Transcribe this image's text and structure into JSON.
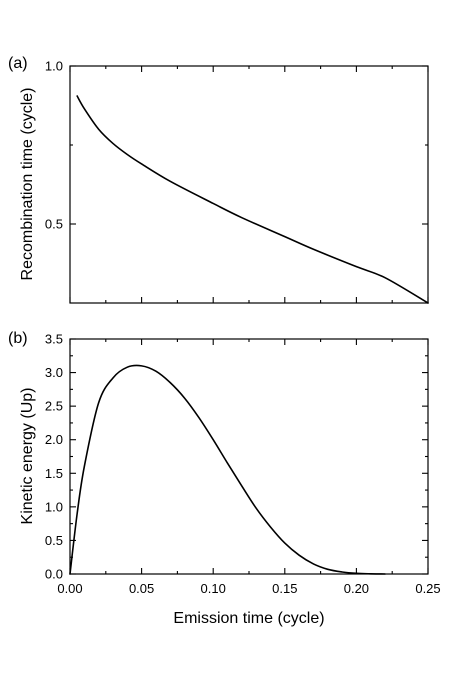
{
  "chart_data": [
    {
      "type": "line",
      "panel_label": "(a)",
      "xlabel": "",
      "ylabel": "Recombination time (cycle)",
      "xlim": [
        0,
        0.25
      ],
      "ylim": [
        0.25,
        1.0
      ],
      "x_ticks": [
        0.0,
        0.05,
        0.1,
        0.15,
        0.2,
        0.25
      ],
      "x_tick_labels": [],
      "y_ticks": [
        0.5,
        1.0
      ],
      "y_tick_labels": [
        "0.5",
        "1.0"
      ],
      "grid": false,
      "series": [
        {
          "x": [
            0.005,
            0.01,
            0.02,
            0.03,
            0.04,
            0.05,
            0.07,
            0.1,
            0.12,
            0.15,
            0.17,
            0.2,
            0.22,
            0.25
          ],
          "y": [
            0.905,
            0.865,
            0.8,
            0.755,
            0.72,
            0.69,
            0.635,
            0.565,
            0.52,
            0.46,
            0.42,
            0.365,
            0.33,
            0.25
          ]
        }
      ]
    },
    {
      "type": "line",
      "panel_label": "(b)",
      "xlabel": "Emission time (cycle)",
      "ylabel": "Kinetic energy (Up)",
      "xlim": [
        0,
        0.25
      ],
      "ylim": [
        0,
        3.5
      ],
      "x_ticks": [
        0.0,
        0.05,
        0.1,
        0.15,
        0.2,
        0.25
      ],
      "x_tick_labels": [
        "0.00",
        "0.05",
        "0.10",
        "0.15",
        "0.20",
        "0.25"
      ],
      "y_ticks": [
        0.0,
        0.5,
        1.0,
        1.5,
        2.0,
        2.5,
        3.0,
        3.5
      ],
      "y_tick_labels": [
        "0.0",
        "0.5",
        "1.0",
        "1.5",
        "2.0",
        "2.5",
        "3.0",
        "3.5"
      ],
      "grid": false,
      "series": [
        {
          "x": [
            0.0,
            0.005,
            0.01,
            0.02,
            0.03,
            0.04,
            0.05,
            0.06,
            0.07,
            0.08,
            0.09,
            0.1,
            0.11,
            0.12,
            0.13,
            0.14,
            0.15,
            0.16,
            0.17,
            0.18,
            0.19,
            0.2,
            0.21,
            0.22
          ],
          "y": [
            0.0,
            0.9,
            1.6,
            2.55,
            2.92,
            3.08,
            3.1,
            3.02,
            2.85,
            2.62,
            2.33,
            2.0,
            1.65,
            1.31,
            0.98,
            0.7,
            0.46,
            0.28,
            0.15,
            0.07,
            0.03,
            0.01,
            0.003,
            0.0
          ]
        }
      ]
    }
  ]
}
